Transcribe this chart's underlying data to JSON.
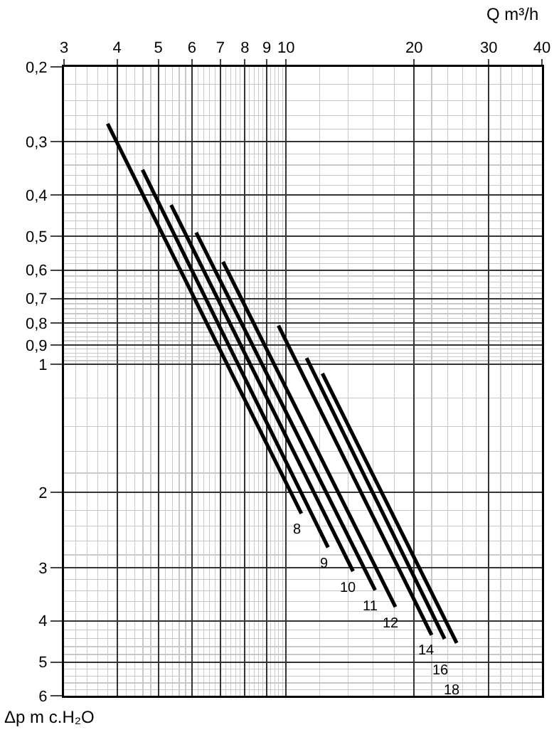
{
  "chart_data": {
    "type": "line",
    "xlabel": "Q m³/h",
    "ylabel": "Δp m c.H₂O",
    "log": "xy",
    "grid": true,
    "legend": false,
    "marker": "none",
    "line_style": "solid",
    "xlim": [
      3,
      40
    ],
    "xticks": [
      3,
      4,
      5,
      6,
      7,
      8,
      9,
      10,
      20,
      30,
      40
    ],
    "ylim": [
      6,
      0.2
    ],
    "yticks": [
      {
        "value": 0.2,
        "label": "0,2"
      },
      {
        "value": 0.3,
        "label": "0,3"
      },
      {
        "value": 0.4,
        "label": "0,4"
      },
      {
        "value": 0.5,
        "label": "0,5"
      },
      {
        "value": 0.6,
        "label": "0,6"
      },
      {
        "value": 0.7,
        "label": "0,7"
      },
      {
        "value": 0.8,
        "label": "0,8"
      },
      {
        "value": 0.9,
        "label": "0,9"
      },
      1,
      2,
      3,
      4,
      5,
      6
    ],
    "series": [
      {
        "name": "8",
        "color": "#000000",
        "x": [
          3.8,
          10.86
        ],
        "values": [
          0.272,
          2.24
        ]
      },
      {
        "name": "9",
        "color": "#000000",
        "x": [
          4.59,
          12.55
        ],
        "values": [
          0.349,
          2.69
        ]
      },
      {
        "name": "10",
        "color": "#000000",
        "x": [
          5.36,
          14.37
        ],
        "values": [
          0.422,
          3.06
        ]
      },
      {
        "name": "11",
        "color": "#000000",
        "x": [
          6.14,
          16.2
        ],
        "values": [
          0.49,
          3.39
        ]
      },
      {
        "name": "12",
        "color": "#000000",
        "x": [
          7.1,
          18.08
        ],
        "values": [
          0.574,
          3.71
        ]
      },
      {
        "name": "14",
        "color": "#000000",
        "x": [
          9.59,
          22.0
        ],
        "values": [
          0.81,
          4.32
        ]
      },
      {
        "name": "16",
        "color": "#000000",
        "x": [
          11.17,
          23.6
        ],
        "values": [
          0.966,
          4.41
        ]
      },
      {
        "name": "18",
        "color": "#000000",
        "x": [
          12.17,
          25.2
        ],
        "values": [
          1.05,
          4.51
        ]
      }
    ]
  }
}
